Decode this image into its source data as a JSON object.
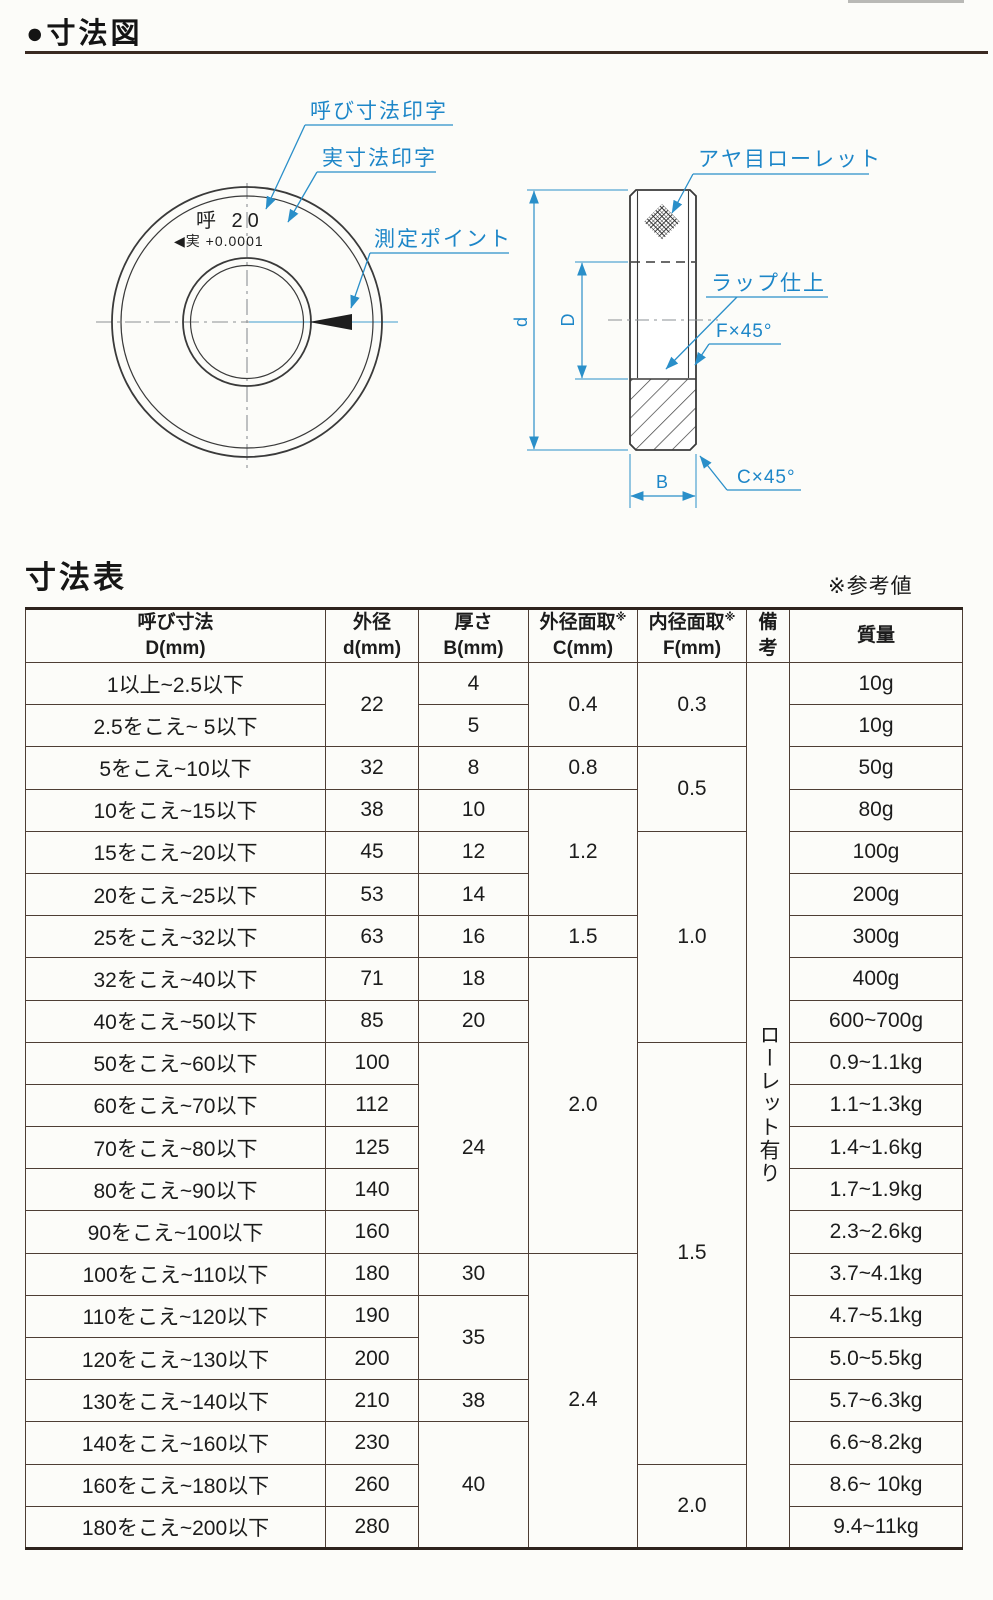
{
  "page": {
    "diagram_section_title": "●寸法図"
  },
  "diagram": {
    "callouts": {
      "nominal_print": "呼び寸法印字",
      "actual_print": "実寸法印字",
      "measure_point": "測定ポイント",
      "knurl": "アヤ目ローレット",
      "lap_finish": "ラップ仕上",
      "bore_chamfer": "F×45°",
      "outer_chamfer": "C×45°"
    },
    "ring_marking": {
      "nominal": "呼 20",
      "actual": "◀実 +0.0001"
    },
    "dims": {
      "outer_diameter": "d",
      "bore_diameter": "D",
      "width": "B"
    },
    "colors": {
      "label_blue": "#1d86c8",
      "line_blue": "#2a8fc9",
      "drawing_line": "#3a3a3a"
    }
  },
  "table": {
    "title": "寸法表",
    "note": "※参考値",
    "columns": [
      {
        "key": "nominal",
        "lines": [
          "呼び寸法",
          "D(mm)"
        ]
      },
      {
        "key": "d",
        "lines": [
          "外径",
          "d(mm)"
        ]
      },
      {
        "key": "B",
        "lines": [
          "厚さ",
          "B(mm)"
        ]
      },
      {
        "key": "C",
        "lines": [
          "外径面取",
          "C(mm)"
        ],
        "sup": "※"
      },
      {
        "key": "F",
        "lines": [
          "内径面取",
          "F(mm)"
        ],
        "sup": "※"
      },
      {
        "key": "remarks",
        "lines": [
          "備",
          "考"
        ]
      },
      {
        "key": "mass",
        "lines": [
          "質量"
        ]
      }
    ],
    "remarks_value": "ローレット有り",
    "body": [
      [
        {
          "c": "nominal",
          "t": "1以上~2.5以下"
        },
        {
          "c": "d",
          "t": "22",
          "rs": 2
        },
        {
          "c": "B",
          "t": "4"
        },
        {
          "c": "C",
          "t": "0.4",
          "rs": 2
        },
        {
          "c": "F",
          "t": "0.3",
          "rs": 2
        },
        {
          "c": "remarks",
          "t": "ローレット有り",
          "rs": 21
        },
        {
          "c": "mass",
          "t": "10g"
        }
      ],
      [
        {
          "c": "nominal",
          "t": "2.5をこえ~ 5以下"
        },
        {
          "c": "B",
          "t": "5"
        },
        {
          "c": "mass",
          "t": "10g"
        }
      ],
      [
        {
          "c": "nominal",
          "t": "5をこえ~10以下"
        },
        {
          "c": "d",
          "t": "32"
        },
        {
          "c": "B",
          "t": "8"
        },
        {
          "c": "C",
          "t": "0.8"
        },
        {
          "c": "F",
          "t": "0.5",
          "rs": 2
        },
        {
          "c": "mass",
          "t": "50g"
        }
      ],
      [
        {
          "c": "nominal",
          "t": "10をこえ~15以下"
        },
        {
          "c": "d",
          "t": "38"
        },
        {
          "c": "B",
          "t": "10"
        },
        {
          "c": "C",
          "t": "1.2",
          "rs": 3
        },
        {
          "c": "mass",
          "t": "80g"
        }
      ],
      [
        {
          "c": "nominal",
          "t": "15をこえ~20以下"
        },
        {
          "c": "d",
          "t": "45"
        },
        {
          "c": "B",
          "t": "12"
        },
        {
          "c": "F",
          "t": "1.0",
          "rs": 5
        },
        {
          "c": "mass",
          "t": "100g"
        }
      ],
      [
        {
          "c": "nominal",
          "t": "20をこえ~25以下"
        },
        {
          "c": "d",
          "t": "53"
        },
        {
          "c": "B",
          "t": "14"
        },
        {
          "c": "mass",
          "t": "200g"
        }
      ],
      [
        {
          "c": "nominal",
          "t": "25をこえ~32以下"
        },
        {
          "c": "d",
          "t": "63"
        },
        {
          "c": "B",
          "t": "16"
        },
        {
          "c": "C",
          "t": "1.5"
        },
        {
          "c": "mass",
          "t": "300g"
        }
      ],
      [
        {
          "c": "nominal",
          "t": "32をこえ~40以下"
        },
        {
          "c": "d",
          "t": "71"
        },
        {
          "c": "B",
          "t": "18"
        },
        {
          "c": "C",
          "t": "2.0",
          "rs": 7
        },
        {
          "c": "mass",
          "t": "400g"
        }
      ],
      [
        {
          "c": "nominal",
          "t": "40をこえ~50以下"
        },
        {
          "c": "d",
          "t": "85"
        },
        {
          "c": "B",
          "t": "20"
        },
        {
          "c": "mass",
          "t": "600~700g"
        }
      ],
      [
        {
          "c": "nominal",
          "t": "50をこえ~60以下"
        },
        {
          "c": "d",
          "t": "100"
        },
        {
          "c": "B",
          "t": "24",
          "rs": 5
        },
        {
          "c": "F",
          "t": "1.5",
          "rs": 10
        },
        {
          "c": "mass",
          "t": "0.9~1.1kg"
        }
      ],
      [
        {
          "c": "nominal",
          "t": "60をこえ~70以下"
        },
        {
          "c": "d",
          "t": "112"
        },
        {
          "c": "mass",
          "t": "1.1~1.3kg"
        }
      ],
      [
        {
          "c": "nominal",
          "t": "70をこえ~80以下"
        },
        {
          "c": "d",
          "t": "125"
        },
        {
          "c": "mass",
          "t": "1.4~1.6kg"
        }
      ],
      [
        {
          "c": "nominal",
          "t": "80をこえ~90以下"
        },
        {
          "c": "d",
          "t": "140"
        },
        {
          "c": "mass",
          "t": "1.7~1.9kg"
        }
      ],
      [
        {
          "c": "nominal",
          "t": "90をこえ~100以下"
        },
        {
          "c": "d",
          "t": "160"
        },
        {
          "c": "mass",
          "t": "2.3~2.6kg"
        }
      ],
      [
        {
          "c": "nominal",
          "t": "100をこえ~110以下"
        },
        {
          "c": "d",
          "t": "180"
        },
        {
          "c": "B",
          "t": "30"
        },
        {
          "c": "C",
          "t": "2.4",
          "rs": 7
        },
        {
          "c": "mass",
          "t": "3.7~4.1kg"
        }
      ],
      [
        {
          "c": "nominal",
          "t": "110をこえ~120以下"
        },
        {
          "c": "d",
          "t": "190"
        },
        {
          "c": "B",
          "t": "35",
          "rs": 2
        },
        {
          "c": "mass",
          "t": "4.7~5.1kg"
        }
      ],
      [
        {
          "c": "nominal",
          "t": "120をこえ~130以下"
        },
        {
          "c": "d",
          "t": "200"
        },
        {
          "c": "mass",
          "t": "5.0~5.5kg"
        }
      ],
      [
        {
          "c": "nominal",
          "t": "130をこえ~140以下"
        },
        {
          "c": "d",
          "t": "210"
        },
        {
          "c": "B",
          "t": "38"
        },
        {
          "c": "mass",
          "t": "5.7~6.3kg"
        }
      ],
      [
        {
          "c": "nominal",
          "t": "140をこえ~160以下"
        },
        {
          "c": "d",
          "t": "230"
        },
        {
          "c": "B",
          "t": "40",
          "rs": 3
        },
        {
          "c": "mass",
          "t": "6.6~8.2kg"
        }
      ],
      [
        {
          "c": "nominal",
          "t": "160をこえ~180以下"
        },
        {
          "c": "d",
          "t": "260"
        },
        {
          "c": "F",
          "t": "2.0",
          "rs": 2
        },
        {
          "c": "mass",
          "t": "8.6~ 10kg"
        }
      ],
      [
        {
          "c": "nominal",
          "t": "180をこえ~200以下"
        },
        {
          "c": "d",
          "t": "280"
        },
        {
          "c": "mass",
          "t": "9.4~11kg"
        }
      ]
    ]
  }
}
